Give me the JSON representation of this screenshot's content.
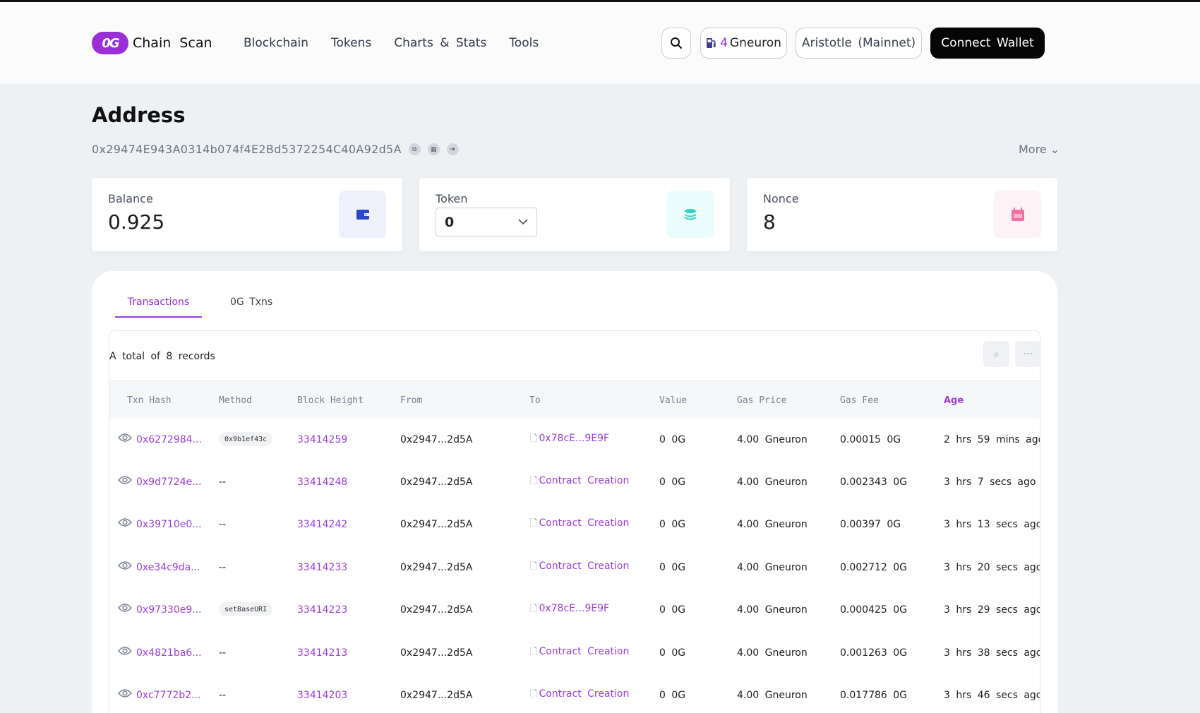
{
  "header": {
    "logo_text": "Chain Scan",
    "logo_mark": "0G",
    "nav": [
      "Blockchain",
      "Tokens",
      "Charts & Stats",
      "Tools"
    ],
    "gas_value": "4",
    "gas_unit": "Gneuron",
    "network": "Aristotle (Mainnet)",
    "connect": "Connect Wallet"
  },
  "page": {
    "title": "Address",
    "address": "0x29474E943A0314b074f4E2Bd5372254C40A92d5A",
    "more": "More"
  },
  "cards": {
    "balance_label": "Balance",
    "balance_value": "0.925",
    "token_label": "Token",
    "token_value": "0",
    "nonce_label": "Nonce",
    "nonce_value": "8"
  },
  "tabs": {
    "transactions": "Transactions",
    "og_txns": "0G Txns"
  },
  "table": {
    "records": "A total of 8 records",
    "headers": [
      "Txn Hash",
      "Method",
      "Block Height",
      "From",
      "To",
      "Value",
      "Gas Price",
      "Gas Fee",
      "Age"
    ],
    "rows": [
      {
        "hash": "0x6272984...",
        "method": "0x9b1ef43c",
        "block": "33414259",
        "from": "0x2947...2d5A",
        "to": "0x78cE...9E9F",
        "value": "0 0G",
        "gas_price": "4.00 Gneuron",
        "gas_fee": "0.00015 0G",
        "age": "2 hrs 59 mins ago"
      },
      {
        "hash": "0x9d7724e...",
        "method": "--",
        "block": "33414248",
        "from": "0x2947...2d5A",
        "to": "Contract Creation",
        "value": "0 0G",
        "gas_price": "4.00 Gneuron",
        "gas_fee": "0.002343 0G",
        "age": "3 hrs 7 secs ago"
      },
      {
        "hash": "0x39710e0...",
        "method": "--",
        "block": "33414242",
        "from": "0x2947...2d5A",
        "to": "Contract Creation",
        "value": "0 0G",
        "gas_price": "4.00 Gneuron",
        "gas_fee": "0.00397 0G",
        "age": "3 hrs 13 secs ago"
      },
      {
        "hash": "0xe34c9da...",
        "method": "--",
        "block": "33414233",
        "from": "0x2947...2d5A",
        "to": "Contract Creation",
        "value": "0 0G",
        "gas_price": "4.00 Gneuron",
        "gas_fee": "0.002712 0G",
        "age": "3 hrs 20 secs ago"
      },
      {
        "hash": "0x97330e9...",
        "method": "setBaseURI",
        "block": "33414223",
        "from": "0x2947...2d5A",
        "to": "0x78cE...9E9F",
        "value": "0 0G",
        "gas_price": "4.00 Gneuron",
        "gas_fee": "0.000425 0G",
        "age": "3 hrs 29 secs ago"
      },
      {
        "hash": "0x4821ba6...",
        "method": "--",
        "block": "33414213",
        "from": "0x2947...2d5A",
        "to": "Contract Creation",
        "value": "0 0G",
        "gas_price": "4.00 Gneuron",
        "gas_fee": "0.001263 0G",
        "age": "3 hrs 38 secs ago"
      },
      {
        "hash": "0xc7772b2...",
        "method": "--",
        "block": "33414203",
        "from": "0x2947...2d5A",
        "to": "Contract Creation",
        "value": "0 0G",
        "gas_price": "4.00 Gneuron",
        "gas_fee": "0.017786 0G",
        "age": "3 hrs 46 secs ago"
      }
    ]
  },
  "colors": {
    "accent": "#9a3fd8",
    "brand": "#9a2fd6"
  }
}
